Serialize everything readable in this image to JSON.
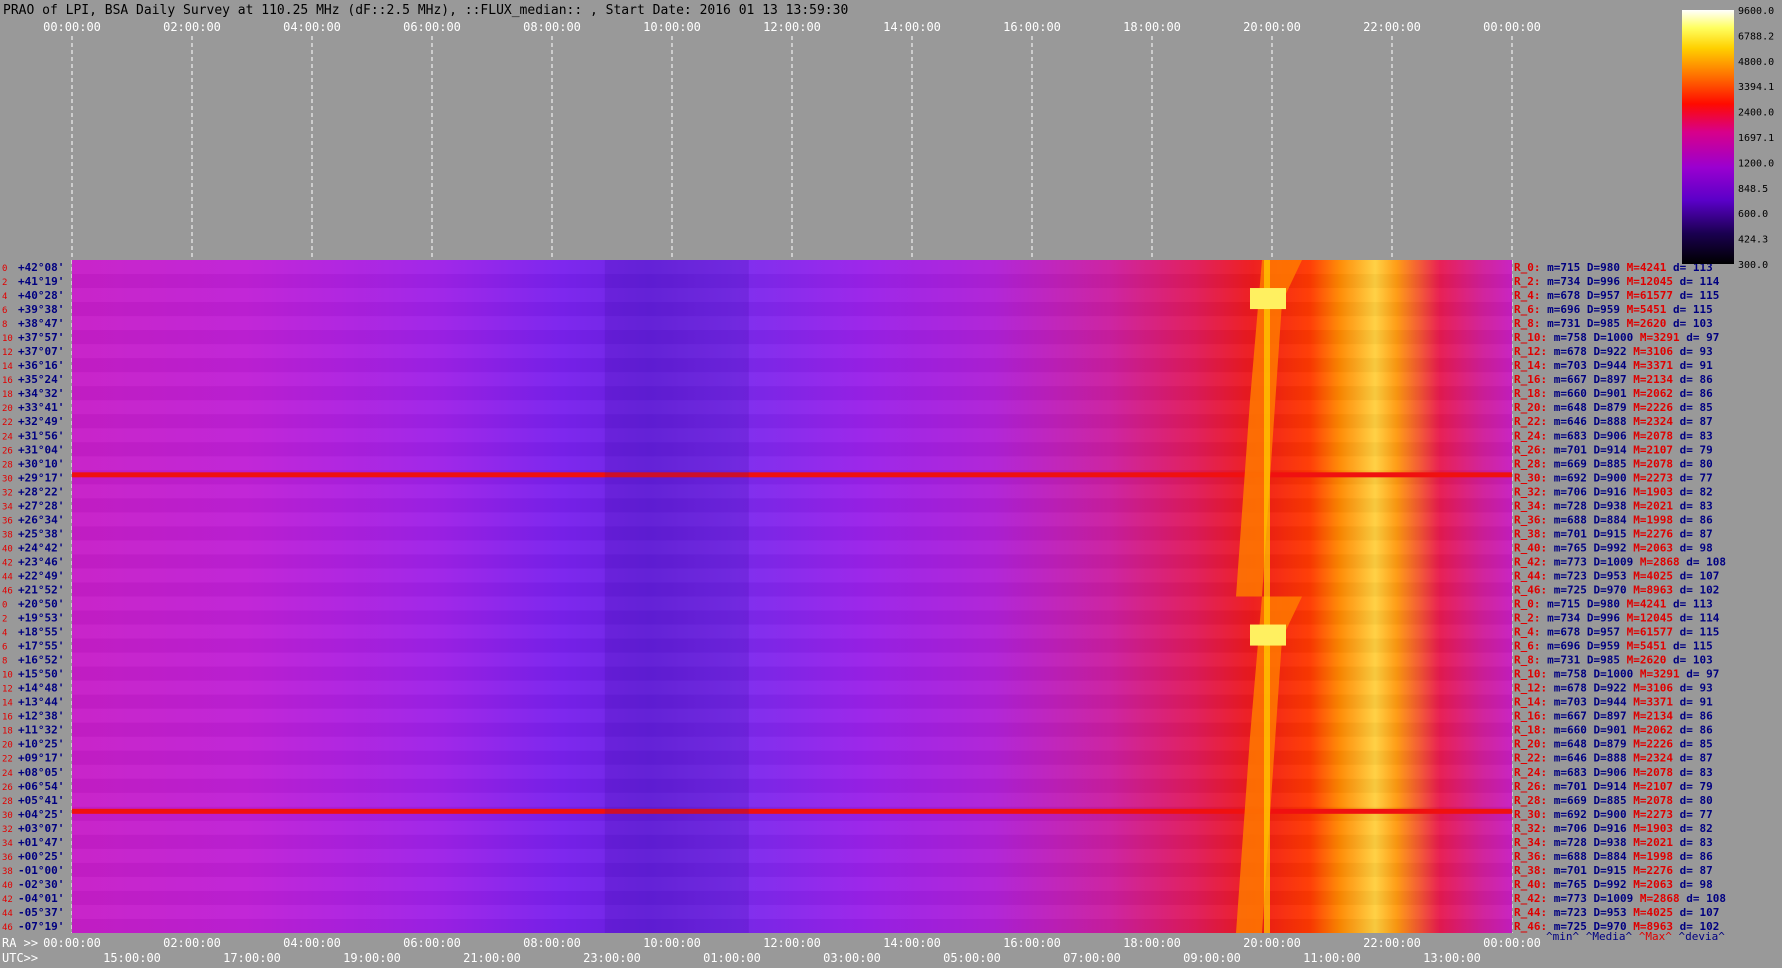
{
  "title": "PRAO of LPI, BSA Daily Survey at 110.25 MHz (dF::2.5 MHz), ::FLUX_median:: , Start Date: 2016 01 13 13:59:30",
  "colors": {
    "background": "#999999",
    "label_blue": "#000080",
    "label_red": "#e00000"
  },
  "chart_data": {
    "type": "heatmap",
    "title": "PRAO of LPI, BSA Daily Survey at 110.25 MHz (dF::2.5 MHz), ::FLUX_median:: , Start Date: 2016 01 13 13:59:30",
    "colormap": "gnuplot-hot (black-purple-red-yellow-white)",
    "colorbar": {
      "ticks": [
        "9600.0",
        "6788.2",
        "4800.0",
        "3394.1",
        "2400.0",
        "1697.1",
        "1200.0",
        "848.5",
        "600.0",
        "424.3",
        "300.0"
      ],
      "range": [
        300.0,
        9600.0
      ],
      "scale": "log"
    },
    "top_axis": {
      "ticks": [
        "00:00:00",
        "02:00:00",
        "04:00:00",
        "06:00:00",
        "08:00:00",
        "10:00:00",
        "12:00:00",
        "14:00:00",
        "16:00:00",
        "18:00:00",
        "20:00:00",
        "22:00:00",
        "00:00:00"
      ]
    },
    "bottom_ra_axis": {
      "label": "RA >>",
      "ticks": [
        "00:00:00",
        "02:00:00",
        "04:00:00",
        "06:00:00",
        "08:00:00",
        "10:00:00",
        "12:00:00",
        "14:00:00",
        "16:00:00",
        "18:00:00",
        "20:00:00",
        "22:00:00",
        "00:00:00"
      ]
    },
    "bottom_utc_axis": {
      "label": "UTC>>",
      "ticks": [
        "15:00:00",
        "17:00:00",
        "19:00:00",
        "21:00:00",
        "23:00:00",
        "01:00:00",
        "03:00:00",
        "05:00:00",
        "07:00:00",
        "09:00:00",
        "11:00:00",
        "13:00:00"
      ]
    },
    "declinations": [
      "+42°08'",
      "+41°19'",
      "+40°28'",
      "+39°38'",
      "+38°47'",
      "+37°57'",
      "+37°07'",
      "+36°16'",
      "+35°24'",
      "+34°32'",
      "+33°41'",
      "+32°49'",
      "+31°56'",
      "+31°04'",
      "+30°10'",
      "+29°17'",
      "+28°22'",
      "+27°28'",
      "+26°34'",
      "+25°38'",
      "+24°42'",
      "+23°46'",
      "+22°49'",
      "+21°52'",
      "+20°50'",
      "+19°53'",
      "+18°55'",
      "+17°55'",
      "+16°52'",
      "+15°50'",
      "+14°48'",
      "+13°44'",
      "+12°38'",
      "+11°32'",
      "+10°25'",
      "+09°17'",
      "+08°05'",
      "+06°54'",
      "+05°41'",
      "+04°25'",
      "+03°07'",
      "+01°47'",
      "+00°25'",
      "-01°00'",
      "-02°30'",
      "-04°01'",
      "-05°37'",
      "-07°19'"
    ],
    "right_panel": {
      "rows": [
        {
          "r": "R_0:",
          "m": "715",
          "D": "980",
          "M": "4241",
          "d": "113"
        },
        {
          "r": "R_2:",
          "m": "734",
          "D": "996",
          "M": "12045",
          "d": "114"
        },
        {
          "r": "R_4:",
          "m": "678",
          "D": "957",
          "M": "61577",
          "d": "115"
        },
        {
          "r": "R_6:",
          "m": "696",
          "D": "959",
          "M": "5451",
          "d": "115"
        },
        {
          "r": "R_8:",
          "m": "731",
          "D": "985",
          "M": "2620",
          "d": "103"
        },
        {
          "r": "R_10:",
          "m": "758",
          "D": "1000",
          "M": "3291",
          "d": "97"
        },
        {
          "r": "R_12:",
          "m": "678",
          "D": "922",
          "M": "3106",
          "d": "93"
        },
        {
          "r": "R_14:",
          "m": "703",
          "D": "944",
          "M": "3371",
          "d": "91"
        },
        {
          "r": "R_16:",
          "m": "667",
          "D": "897",
          "M": "2134",
          "d": "86"
        },
        {
          "r": "R_18:",
          "m": "660",
          "D": "901",
          "M": "2062",
          "d": "86"
        },
        {
          "r": "R_20:",
          "m": "648",
          "D": "879",
          "M": "2226",
          "d": "85"
        },
        {
          "r": "R_22:",
          "m": "646",
          "D": "888",
          "M": "2324",
          "d": "87"
        },
        {
          "r": "R_24:",
          "m": "683",
          "D": "906",
          "M": "2078",
          "d": "83"
        },
        {
          "r": "R_26:",
          "m": "701",
          "D": "914",
          "M": "2107",
          "d": "79"
        },
        {
          "r": "R_28:",
          "m": "669",
          "D": "885",
          "M": "2078",
          "d": "80"
        },
        {
          "r": "R_30:",
          "m": "692",
          "D": "900",
          "M": "2273",
          "d": "77"
        },
        {
          "r": "R_32:",
          "m": "706",
          "D": "916",
          "M": "1903",
          "d": "82"
        },
        {
          "r": "R_34:",
          "m": "728",
          "D": "938",
          "M": "2021",
          "d": "83"
        },
        {
          "r": "R_36:",
          "m": "688",
          "D": "884",
          "M": "1998",
          "d": "86"
        },
        {
          "r": "R_38:",
          "m": "701",
          "D": "915",
          "M": "2276",
          "d": "87"
        },
        {
          "r": "R_40:",
          "m": "765",
          "D": "992",
          "M": "2063",
          "d": "98"
        },
        {
          "r": "R_42:",
          "m": "773",
          "D": "1009",
          "M": "2868",
          "d": "108"
        },
        {
          "r": "R_44:",
          "m": "723",
          "D": "953",
          "M": "4025",
          "d": "107"
        },
        {
          "r": "R_46:",
          "m": "725",
          "D": "970",
          "M": "8963",
          "d": "102"
        }
      ],
      "footer": {
        "min": "^min^",
        "median": "^Media^",
        "max": "^Max^",
        "dev": "^devia^"
      }
    }
  }
}
